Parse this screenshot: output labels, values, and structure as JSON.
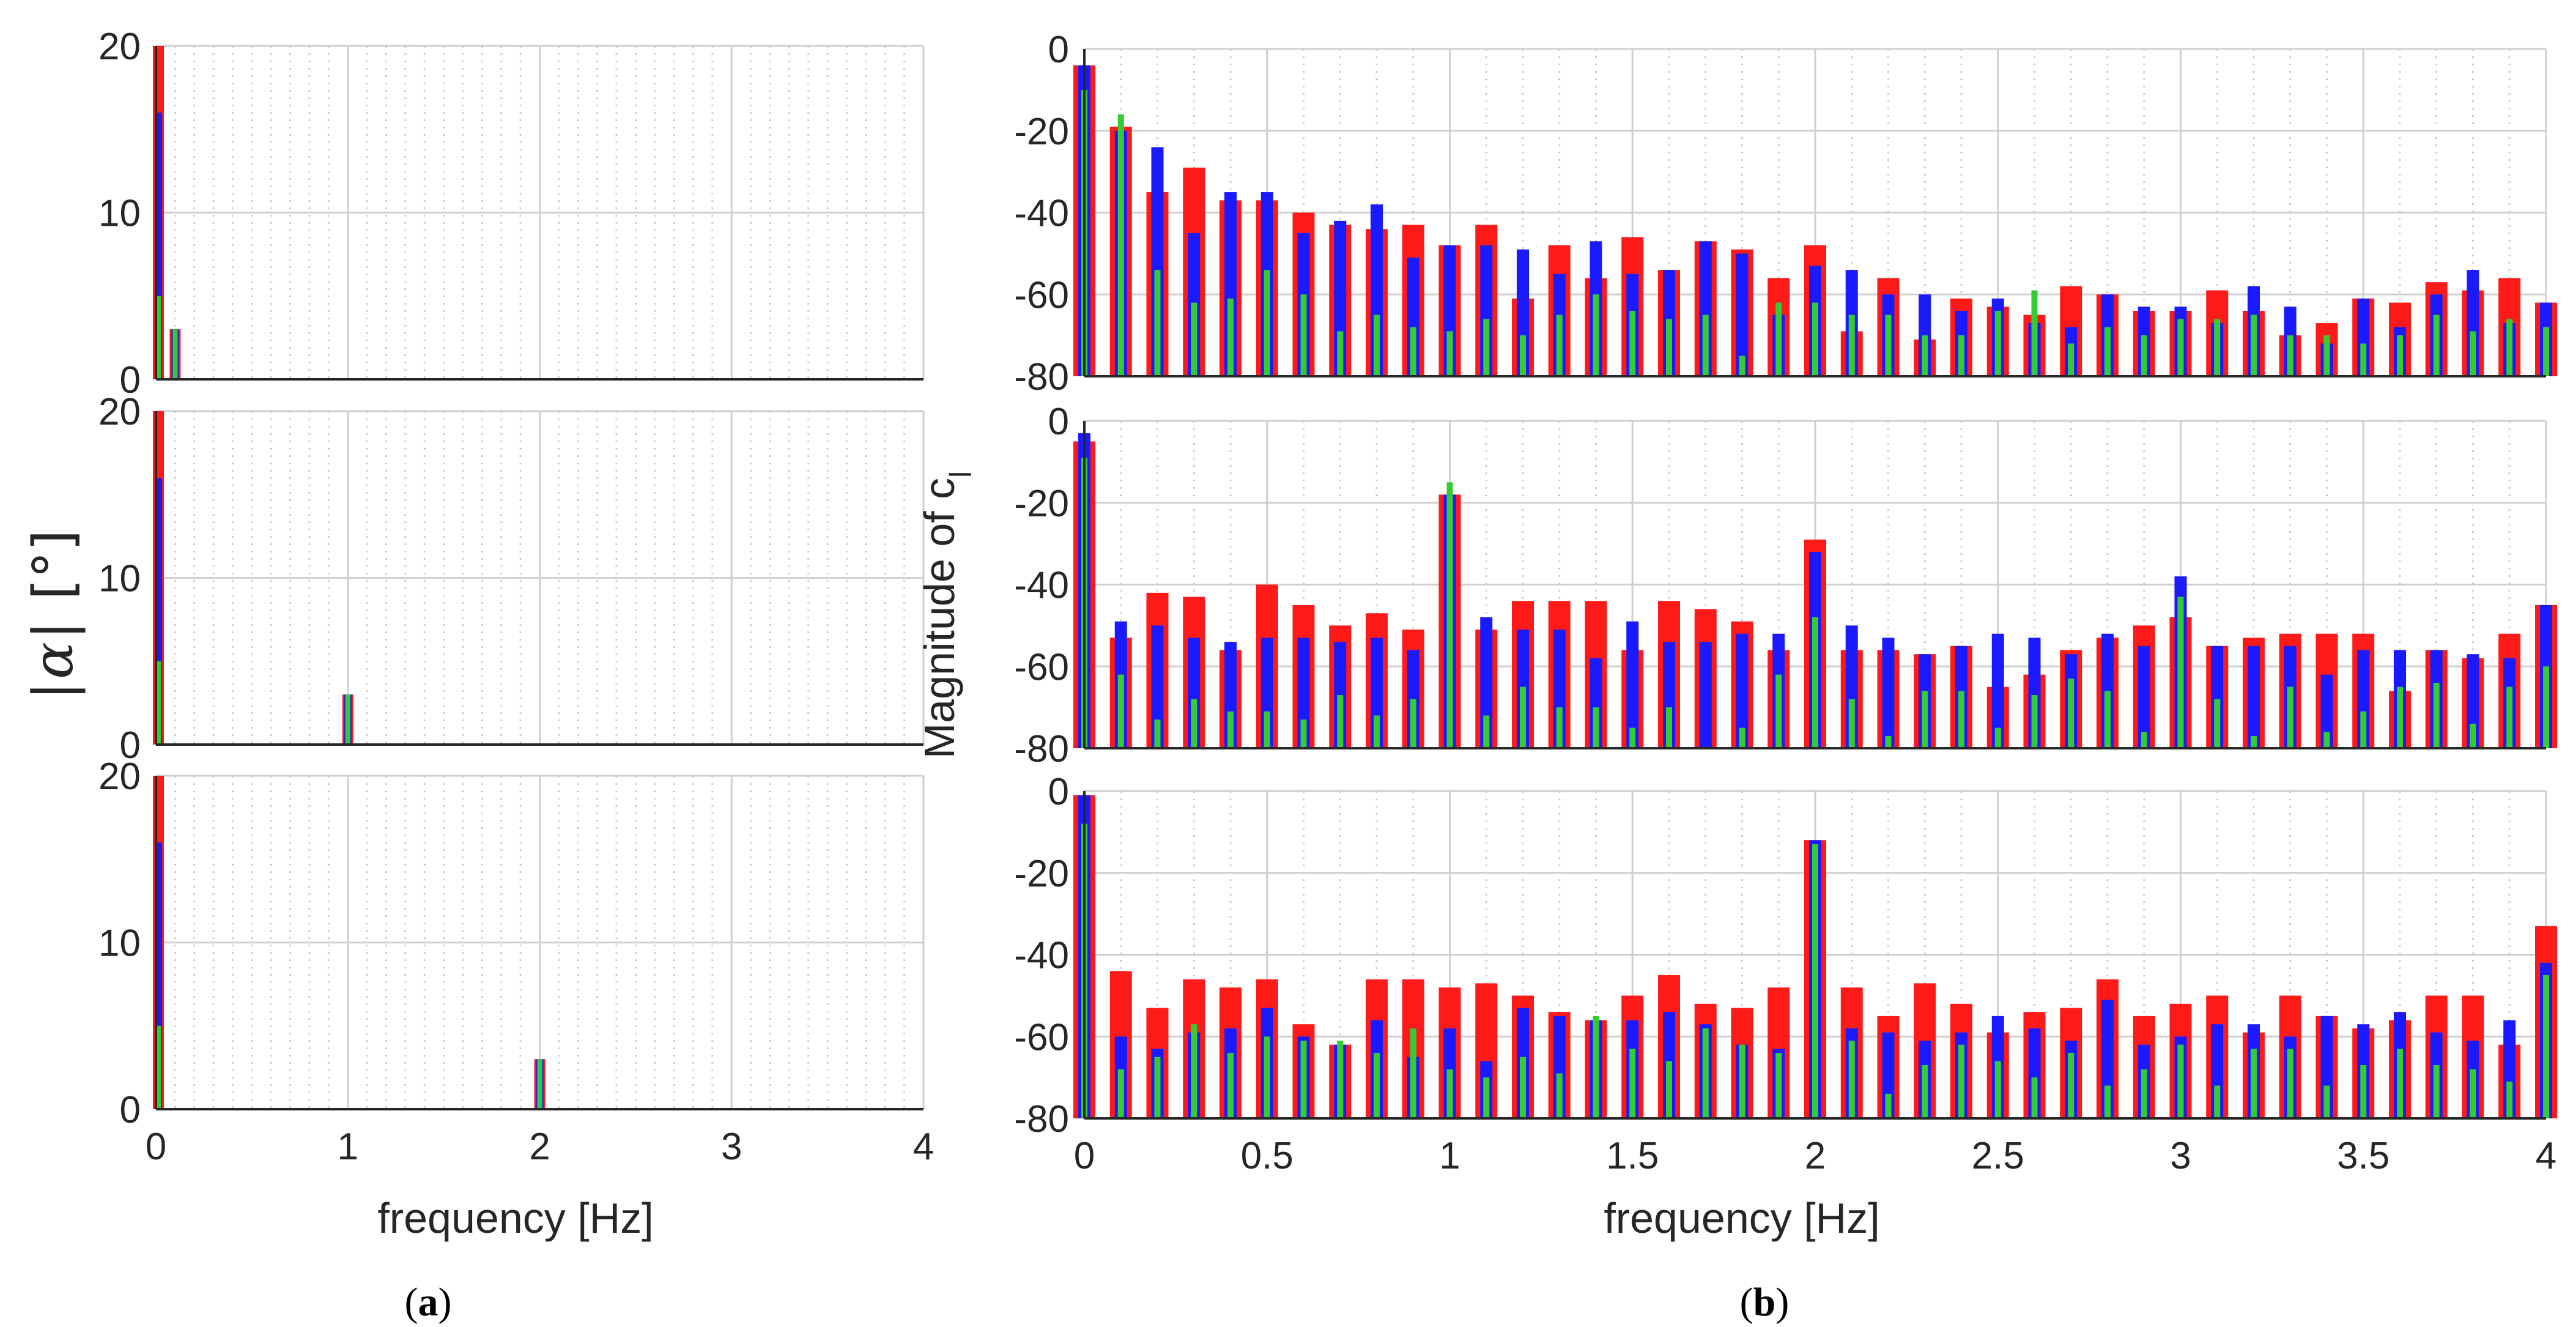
{
  "figure": {
    "panel_a_label": "a",
    "panel_b_label": "b",
    "colors": {
      "red": "#ff1a1a",
      "blue": "#1a1aff",
      "green": "#33cc33",
      "grid": "#cfcfcf",
      "axis": "#262626"
    }
  },
  "chart_data": [
    {
      "id": "a",
      "type": "bar",
      "xlabel": "frequency [Hz]",
      "ylabel": {
        "prefix": "|",
        "symbol": "α",
        "suffix": "|",
        "unit": "[°]"
      },
      "xlim": [
        0,
        4
      ],
      "ylim": [
        0,
        20
      ],
      "xticks": [
        "0",
        "1",
        "2",
        "3",
        "4"
      ],
      "yticks": [
        "0",
        "10",
        "20"
      ],
      "grid": true,
      "series_order": [
        "red",
        "blue",
        "green"
      ],
      "subplots": [
        {
          "bars": [
            {
              "x": 0,
              "red": 20,
              "blue": 16,
              "green": 5
            },
            {
              "x": 0.1,
              "red": 3,
              "blue": 3,
              "green": 3
            }
          ]
        },
        {
          "bars": [
            {
              "x": 0,
              "red": 20,
              "blue": 16,
              "green": 5
            },
            {
              "x": 1,
              "red": 3,
              "blue": 3,
              "green": 3
            }
          ]
        },
        {
          "bars": [
            {
              "x": 0,
              "red": 20,
              "blue": 16,
              "green": 5
            },
            {
              "x": 2,
              "red": 3,
              "blue": 3,
              "green": 3
            }
          ]
        }
      ]
    },
    {
      "id": "b",
      "type": "bar",
      "xlabel": "frequency [Hz]",
      "ylabel": {
        "text": "Magnitude of c",
        "subscript": "l"
      },
      "xlim": [
        0,
        4
      ],
      "ylim": [
        -80,
        0
      ],
      "x_step": 0.1,
      "xticks": [
        "0",
        "0.5",
        "1",
        "1.5",
        "2",
        "2.5",
        "3",
        "3.5",
        "4"
      ],
      "yticks": [
        "0",
        "-20",
        "-40",
        "-60",
        "-80"
      ],
      "grid": true,
      "subplots": [
        {
          "red": [
            -4,
            -19,
            -35,
            -29,
            -37,
            -37,
            -40,
            -43,
            -44,
            -43,
            -48,
            -43,
            -61,
            -48,
            -56,
            -46,
            -54,
            -47,
            -49,
            -56,
            -48,
            -69,
            -56,
            -71,
            -61,
            -63,
            -65,
            -58,
            -60,
            -64,
            -64,
            -59,
            -64,
            -70,
            -67,
            -61,
            -62,
            -57,
            -59,
            -56,
            -62
          ],
          "blue": [
            -4,
            -20,
            -24,
            -45,
            -35,
            -35,
            -45,
            -42,
            -38,
            -51,
            -48,
            -48,
            -49,
            -55,
            -47,
            -55,
            -54,
            -47,
            -50,
            -65,
            -53,
            -54,
            -60,
            -60,
            -64,
            -61,
            -67,
            -68,
            -60,
            -63,
            -63,
            -67,
            -58,
            -63,
            -72,
            -61,
            -68,
            -60,
            -54,
            -67,
            -62
          ],
          "green": [
            -10,
            -16,
            -54,
            -62,
            -61,
            -54,
            -60,
            -69,
            -65,
            -68,
            -69,
            -66,
            -70,
            -65,
            -60,
            -64,
            -66,
            -65,
            -75,
            -62,
            -62,
            -65,
            -65,
            -70,
            -70,
            -64,
            -59,
            -72,
            -68,
            -70,
            -66,
            -66,
            -65,
            -70,
            -70,
            -72,
            -70,
            -65,
            -69,
            -66,
            -68
          ]
        },
        {
          "red": [
            -5,
            -53,
            -42,
            -43,
            -56,
            -40,
            -45,
            -50,
            -47,
            -51,
            -18,
            -51,
            -44,
            -44,
            -44,
            -56,
            -44,
            -46,
            -49,
            -56,
            -29,
            -56,
            -56,
            -57,
            -55,
            -65,
            -62,
            -56,
            -53,
            -50,
            -48,
            -55,
            -53,
            -52,
            -52,
            -52,
            -66,
            -56,
            -58,
            -52,
            -45
          ],
          "blue": [
            -3,
            -49,
            -50,
            -53,
            -54,
            -53,
            -53,
            -54,
            -53,
            -56,
            -18,
            -48,
            -51,
            -51,
            -58,
            -49,
            -54,
            -54,
            -52,
            -52,
            -32,
            -50,
            -53,
            -57,
            -55,
            -52,
            -53,
            -57,
            -52,
            -55,
            -38,
            -55,
            -55,
            -55,
            -62,
            -56,
            -56,
            -56,
            -57,
            -58,
            -45
          ],
          "green": [
            -9,
            -62,
            -73,
            -68,
            -71,
            -71,
            -73,
            -67,
            -72,
            -68,
            -15,
            -72,
            -65,
            -70,
            -70,
            -75,
            -70,
            -80,
            -75,
            -62,
            -48,
            -68,
            -77,
            -66,
            -66,
            -75,
            -67,
            -63,
            -66,
            -76,
            -43,
            -68,
            -77,
            -65,
            -76,
            -71,
            -65,
            -64,
            -74,
            -65,
            -60
          ]
        },
        {
          "red": [
            -1,
            -44,
            -53,
            -46,
            -48,
            -46,
            -57,
            -62,
            -46,
            -46,
            -48,
            -47,
            -50,
            -54,
            -56,
            -50,
            -45,
            -52,
            -53,
            -48,
            -12,
            -48,
            -55,
            -47,
            -52,
            -59,
            -54,
            -53,
            -46,
            -55,
            -52,
            -50,
            -59,
            -50,
            -55,
            -58,
            -56,
            -50,
            -50,
            -62,
            -33
          ],
          "blue": [
            -1,
            -60,
            -63,
            -59,
            -58,
            -53,
            -60,
            -62,
            -56,
            -65,
            -58,
            -66,
            -53,
            -55,
            -56,
            -56,
            -54,
            -57,
            -62,
            -63,
            -12,
            -58,
            -59,
            -61,
            -59,
            -55,
            -58,
            -61,
            -51,
            -62,
            -60,
            -57,
            -57,
            -60,
            -55,
            -57,
            -54,
            -59,
            -61,
            -56,
            -42
          ],
          "green": [
            -8,
            -68,
            -65,
            -57,
            -64,
            -60,
            -61,
            -61,
            -64,
            -58,
            -68,
            -70,
            -65,
            -69,
            -55,
            -63,
            -66,
            -58,
            -62,
            -64,
            -13,
            -61,
            -74,
            -67,
            -62,
            -66,
            -70,
            -64,
            -72,
            -68,
            -62,
            -72,
            -63,
            -63,
            -72,
            -67,
            -63,
            -67,
            -68,
            -71,
            -45
          ]
        }
      ]
    }
  ]
}
